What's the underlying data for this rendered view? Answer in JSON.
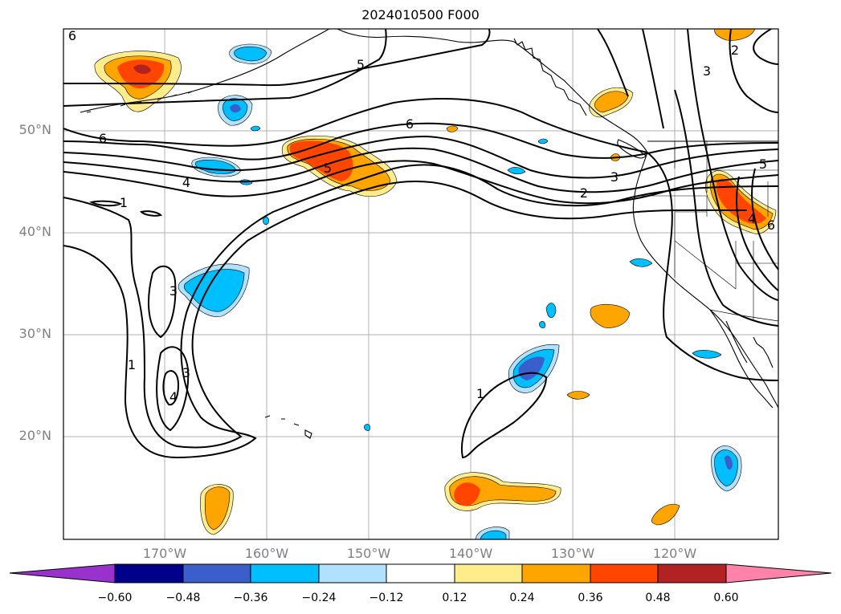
{
  "title": "2024010500 F000",
  "latitude_labels": [
    "50°N",
    "40°N",
    "30°N",
    "20°N"
  ],
  "longitude_labels": [
    "170°W",
    "160°W",
    "150°W",
    "140°W",
    "130°W",
    "120°W"
  ],
  "contour_labels": [
    "6",
    "5",
    "6",
    "4",
    "5",
    "6",
    "2",
    "3",
    "3",
    "2",
    "5",
    "4",
    "6",
    "3",
    "1",
    "3",
    "4",
    "1",
    "1"
  ],
  "colorbar": {
    "ticks": [
      "−0.60",
      "−0.48",
      "−0.36",
      "−0.24",
      "−0.12",
      "0.12",
      "0.24",
      "0.36",
      "0.48",
      "0.60"
    ],
    "colors": [
      "#9932cc",
      "#00008b",
      "#3a5fcd",
      "#00bfff",
      "#b0e2ff",
      "#ffffff",
      "#ffec8b",
      "#ffa500",
      "#ff4500",
      "#b22222",
      "#ff82ab"
    ]
  },
  "shading_colors": {
    "pos1": "#ffec8b",
    "pos2": "#ffa500",
    "pos3": "#ff4500",
    "pos4": "#b22222",
    "neg1": "#b0e2ff",
    "neg2": "#00bfff",
    "neg3": "#3a5fcd"
  }
}
